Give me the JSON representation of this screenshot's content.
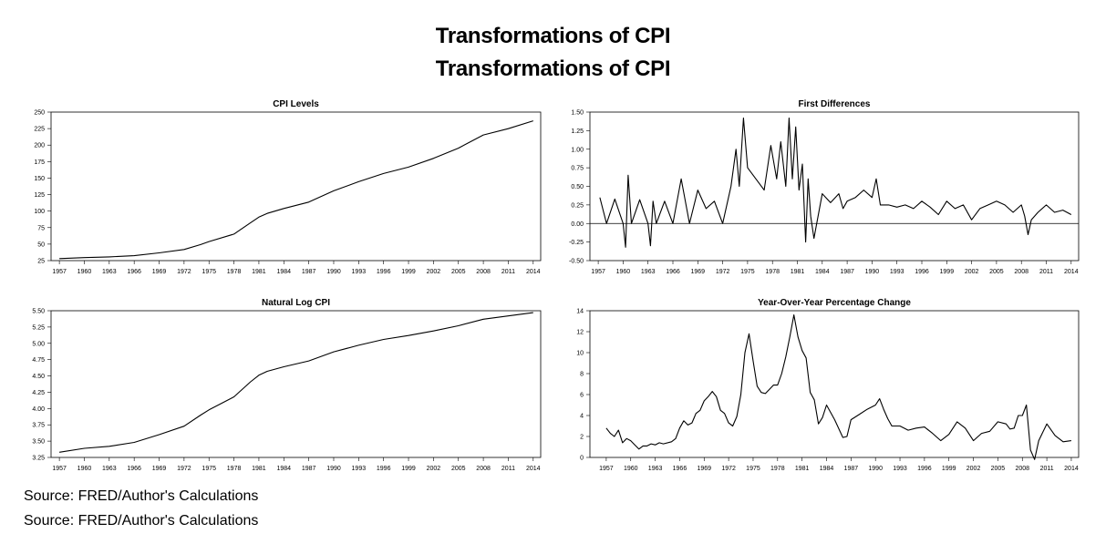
{
  "titles": [
    "Transformations of CPI",
    "Transformations of CPI"
  ],
  "source": [
    "Source: FRED/Author's Calculations",
    "Source: FRED/Author's Calculations"
  ],
  "chart_data": [
    {
      "type": "line",
      "title": "CPI Levels",
      "xlabel": "",
      "ylabel": "",
      "xlim": [
        1956.0,
        2014.9
      ],
      "ylim": [
        25,
        250
      ],
      "yticks": [
        25,
        50,
        75,
        100,
        125,
        150,
        175,
        200,
        225,
        250
      ],
      "ytick_labels": [
        "25",
        "50",
        "75",
        "100",
        "125",
        "150",
        "175",
        "200",
        "225",
        "250"
      ],
      "xticks": [
        1957,
        1960,
        1963,
        1966,
        1969,
        1972,
        1975,
        1978,
        1981,
        1984,
        1987,
        1990,
        1993,
        1996,
        1999,
        2002,
        2005,
        2008,
        2011,
        2014
      ],
      "zero_line": false,
      "series": [
        {
          "name": "CPI",
          "x": [
            1957,
            1960,
            1963,
            1966,
            1969,
            1972,
            1974,
            1975,
            1978,
            1980,
            1981,
            1982,
            1984,
            1987,
            1990,
            1993,
            1996,
            1999,
            2002,
            2005,
            2008,
            2011,
            2014
          ],
          "values": [
            28,
            29.6,
            30.6,
            32.4,
            36.7,
            41.8,
            49.3,
            53.8,
            65.2,
            82.4,
            90.9,
            96.5,
            103.9,
            113.6,
            130.7,
            144.5,
            156.9,
            166.6,
            179.9,
            195.3,
            215.3,
            224.9,
            236.7
          ]
        }
      ]
    },
    {
      "type": "line",
      "title": "First Differences",
      "xlabel": "",
      "ylabel": "",
      "xlim": [
        1956.0,
        2014.9
      ],
      "ylim": [
        -0.5,
        1.5
      ],
      "yticks": [
        -0.5,
        -0.25,
        0,
        0.25,
        0.5,
        0.75,
        1,
        1.25,
        1.5
      ],
      "ytick_labels": [
        "-0.50",
        "-0.25",
        "0.00",
        "0.25",
        "0.50",
        "0.75",
        "1.00",
        "1.25",
        "1.50"
      ],
      "xticks": [
        1957,
        1960,
        1963,
        1966,
        1969,
        1972,
        1975,
        1978,
        1981,
        1984,
        1987,
        1990,
        1993,
        1996,
        1999,
        2002,
        2005,
        2008,
        2011,
        2014
      ],
      "zero_line": true,
      "series": [
        {
          "name": "First differences",
          "x": [
            1957.2,
            1958.0,
            1959.0,
            1960.0,
            1960.3,
            1960.6,
            1961.0,
            1962.0,
            1963.0,
            1963.3,
            1963.6,
            1964.0,
            1965.0,
            1966.0,
            1967.0,
            1968.0,
            1969.0,
            1970.0,
            1971.0,
            1972.0,
            1973.0,
            1973.6,
            1974.0,
            1974.5,
            1975.0,
            1976.0,
            1977.0,
            1977.8,
            1978.5,
            1979.0,
            1979.6,
            1980.0,
            1980.4,
            1980.8,
            1981.2,
            1981.6,
            1982.0,
            1982.3,
            1982.6,
            1983.0,
            1984.0,
            1985.0,
            1986.0,
            1986.5,
            1987.0,
            1988.0,
            1989.0,
            1990.0,
            1990.5,
            1991.0,
            1992.0,
            1993.0,
            1994.0,
            1995.0,
            1996.0,
            1997.0,
            1998.0,
            1999.0,
            2000.0,
            2001.0,
            2002.0,
            2003.0,
            2004.0,
            2005.0,
            2006.0,
            2007.0,
            2008.0,
            2008.4,
            2008.8,
            2009.2,
            2010.0,
            2011.0,
            2012.0,
            2013.0,
            2014.0
          ],
          "values": [
            0.35,
            0.0,
            0.33,
            0.0,
            -0.32,
            0.65,
            0.0,
            0.32,
            0.0,
            -0.3,
            0.3,
            0.0,
            0.3,
            0.0,
            0.6,
            0.0,
            0.45,
            0.2,
            0.3,
            0.0,
            0.5,
            1.0,
            0.5,
            1.42,
            0.75,
            0.6,
            0.45,
            1.05,
            0.6,
            1.1,
            0.5,
            1.42,
            0.6,
            1.3,
            0.45,
            0.8,
            -0.25,
            0.6,
            0.1,
            -0.2,
            0.4,
            0.28,
            0.4,
            0.2,
            0.3,
            0.35,
            0.45,
            0.35,
            0.6,
            0.25,
            0.25,
            0.22,
            0.25,
            0.2,
            0.3,
            0.22,
            0.12,
            0.3,
            0.2,
            0.25,
            0.05,
            0.2,
            0.25,
            0.3,
            0.25,
            0.15,
            0.25,
            0.1,
            -0.15,
            0.05,
            0.15,
            0.25,
            0.15,
            0.18,
            0.12
          ]
        }
      ]
    },
    {
      "type": "line",
      "title": "Natural Log CPI",
      "xlabel": "",
      "ylabel": "",
      "xlim": [
        1956.0,
        2014.9
      ],
      "ylim": [
        3.25,
        5.5
      ],
      "yticks": [
        3.25,
        3.5,
        3.75,
        4,
        4.25,
        4.5,
        4.75,
        5,
        5.25,
        5.5
      ],
      "ytick_labels": [
        "3.25",
        "3.50",
        "3.75",
        "4.00",
        "4.25",
        "4.50",
        "4.75",
        "5.00",
        "5.25",
        "5.50"
      ],
      "xticks": [
        1957,
        1960,
        1963,
        1966,
        1969,
        1972,
        1975,
        1978,
        1981,
        1984,
        1987,
        1990,
        1993,
        1996,
        1999,
        2002,
        2005,
        2008,
        2011,
        2014
      ],
      "zero_line": false,
      "series": [
        {
          "name": "ln CPI",
          "x": [
            1957,
            1960,
            1963,
            1966,
            1969,
            1972,
            1974,
            1975,
            1978,
            1980,
            1981,
            1982,
            1984,
            1987,
            1990,
            1993,
            1996,
            1999,
            2002,
            2005,
            2008,
            2011,
            2014
          ],
          "values": [
            3.33,
            3.39,
            3.42,
            3.48,
            3.6,
            3.73,
            3.9,
            3.98,
            4.18,
            4.41,
            4.51,
            4.57,
            4.64,
            4.73,
            4.87,
            4.97,
            5.06,
            5.12,
            5.19,
            5.27,
            5.37,
            5.42,
            5.47
          ]
        }
      ]
    },
    {
      "type": "line",
      "title": "Year-Over-Year Percentage Change",
      "xlabel": "",
      "ylabel": "",
      "xlim": [
        1955.0,
        2014.9
      ],
      "ylim": [
        0,
        14
      ],
      "yticks": [
        0,
        2,
        4,
        6,
        8,
        10,
        12,
        14
      ],
      "ytick_labels": [
        "0",
        "2",
        "4",
        "6",
        "8",
        "10",
        "12",
        "14"
      ],
      "xticks": [
        1957,
        1960,
        1963,
        1966,
        1969,
        1972,
        1975,
        1978,
        1981,
        1984,
        1987,
        1990,
        1993,
        1996,
        1999,
        2002,
        2005,
        2008,
        2011,
        2014
      ],
      "zero_line": false,
      "series": [
        {
          "name": "YoY % change",
          "x": [
            1957.0,
            1957.5,
            1958.0,
            1958.5,
            1959.0,
            1959.5,
            1960.0,
            1960.5,
            1961.0,
            1961.5,
            1962.0,
            1962.5,
            1963.0,
            1963.5,
            1964.0,
            1965.0,
            1965.5,
            1966.0,
            1966.5,
            1967.0,
            1967.5,
            1968.0,
            1968.5,
            1969.0,
            1969.5,
            1970.0,
            1970.5,
            1971.0,
            1971.5,
            1972.0,
            1972.5,
            1973.0,
            1973.5,
            1974.0,
            1974.5,
            1975.0,
            1975.5,
            1976.0,
            1976.5,
            1977.0,
            1977.5,
            1978.0,
            1978.5,
            1979.0,
            1979.5,
            1980.0,
            1980.5,
            1981.0,
            1981.5,
            1982.0,
            1982.5,
            1983.0,
            1983.5,
            1984.0,
            1985.0,
            1986.0,
            1986.5,
            1987.0,
            1988.0,
            1989.0,
            1990.0,
            1990.5,
            1991.0,
            1991.5,
            1992.0,
            1993.0,
            1994.0,
            1995.0,
            1996.0,
            1997.0,
            1998.0,
            1999.0,
            2000.0,
            2001.0,
            2002.0,
            2003.0,
            2004.0,
            2005.0,
            2006.0,
            2006.5,
            2007.0,
            2007.5,
            2008.0,
            2008.5,
            2009.0,
            2009.5,
            2010.0,
            2011.0,
            2012.0,
            2013.0,
            2014.0
          ],
          "values": [
            2.8,
            2.3,
            2.0,
            2.6,
            1.4,
            1.8,
            1.6,
            1.2,
            0.8,
            1.1,
            1.1,
            1.3,
            1.2,
            1.4,
            1.3,
            1.5,
            1.8,
            2.8,
            3.5,
            3.1,
            3.3,
            4.2,
            4.5,
            5.4,
            5.8,
            6.3,
            5.8,
            4.5,
            4.2,
            3.3,
            3.0,
            3.9,
            6.0,
            10.0,
            11.8,
            9.2,
            6.8,
            6.2,
            6.1,
            6.5,
            6.9,
            6.9,
            8.0,
            9.6,
            11.5,
            13.6,
            11.5,
            10.2,
            9.5,
            6.2,
            5.5,
            3.2,
            3.8,
            5.0,
            3.6,
            1.9,
            2.0,
            3.6,
            4.1,
            4.6,
            5.0,
            5.6,
            4.6,
            3.7,
            3.0,
            3.0,
            2.6,
            2.8,
            2.9,
            2.3,
            1.6,
            2.2,
            3.4,
            2.8,
            1.6,
            2.3,
            2.5,
            3.4,
            3.2,
            2.7,
            2.8,
            4.0,
            4.0,
            5.0,
            0.7,
            -0.2,
            1.6,
            3.2,
            2.1,
            1.5,
            1.6
          ]
        }
      ]
    }
  ]
}
